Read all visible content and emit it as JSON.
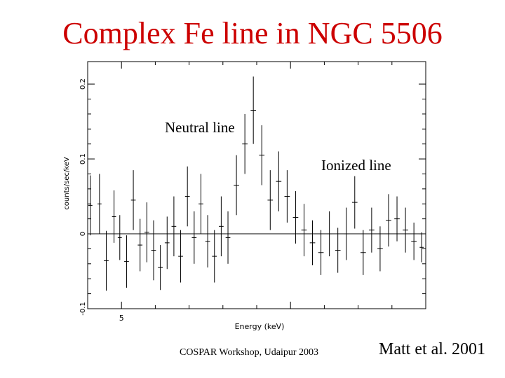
{
  "slide": {
    "title": "Complex Fe line in NGC 5506",
    "footer_left": "COSPAR Workshop, Udaipur 2003",
    "footer_right": "Matt et al. 2001",
    "title_color": "#cc0000"
  },
  "chart_data": {
    "type": "scatter",
    "xlabel": "Energy (keV)",
    "ylabel": "counts/sec/keV",
    "xlim": [
      4.0,
      14.0
    ],
    "ylim": [
      -0.1,
      0.23
    ],
    "xticks": [
      5
    ],
    "yticks": [
      -0.1,
      0,
      0.1,
      0.2
    ],
    "zero_line": true,
    "annotations": [
      {
        "text": "Neutral line"
      },
      {
        "text": "Ionized line"
      }
    ],
    "series": [
      {
        "errorbars": true,
        "points": [
          {
            "x": 4.08,
            "y": 0.038,
            "xerr": 0.06,
            "yerr": 0.04
          },
          {
            "x": 4.35,
            "y": 0.04,
            "xerr": 0.06,
            "yerr": 0.04
          },
          {
            "x": 4.55,
            "y": -0.036,
            "xerr": 0.07,
            "yerr": 0.04
          },
          {
            "x": 4.78,
            "y": 0.023,
            "xerr": 0.06,
            "yerr": 0.035
          },
          {
            "x": 4.95,
            "y": -0.005,
            "xerr": 0.06,
            "yerr": 0.03
          },
          {
            "x": 5.15,
            "y": -0.037,
            "xerr": 0.07,
            "yerr": 0.035
          },
          {
            "x": 5.35,
            "y": 0.045,
            "xerr": 0.07,
            "yerr": 0.04
          },
          {
            "x": 5.55,
            "y": -0.015,
            "xerr": 0.07,
            "yerr": 0.035
          },
          {
            "x": 5.75,
            "y": 0.002,
            "xerr": 0.07,
            "yerr": 0.04
          },
          {
            "x": 5.95,
            "y": -0.022,
            "xerr": 0.07,
            "yerr": 0.04
          },
          {
            "x": 6.15,
            "y": -0.045,
            "xerr": 0.07,
            "yerr": 0.03
          },
          {
            "x": 6.35,
            "y": -0.012,
            "xerr": 0.07,
            "yerr": 0.035
          },
          {
            "x": 6.55,
            "y": 0.01,
            "xerr": 0.07,
            "yerr": 0.04
          },
          {
            "x": 6.75,
            "y": -0.03,
            "xerr": 0.07,
            "yerr": 0.035
          },
          {
            "x": 6.95,
            "y": 0.05,
            "xerr": 0.07,
            "yerr": 0.04
          },
          {
            "x": 7.15,
            "y": -0.005,
            "xerr": 0.07,
            "yerr": 0.035
          },
          {
            "x": 7.35,
            "y": 0.04,
            "xerr": 0.07,
            "yerr": 0.04
          },
          {
            "x": 7.55,
            "y": -0.01,
            "xerr": 0.07,
            "yerr": 0.035
          },
          {
            "x": 7.75,
            "y": -0.03,
            "xerr": 0.07,
            "yerr": 0.035
          },
          {
            "x": 7.95,
            "y": 0.01,
            "xerr": 0.07,
            "yerr": 0.04
          },
          {
            "x": 8.15,
            "y": -0.005,
            "xerr": 0.07,
            "yerr": 0.035
          },
          {
            "x": 8.4,
            "y": 0.065,
            "xerr": 0.08,
            "yerr": 0.04
          },
          {
            "x": 8.65,
            "y": 0.12,
            "xerr": 0.08,
            "yerr": 0.04
          },
          {
            "x": 8.9,
            "y": 0.165,
            "xerr": 0.08,
            "yerr": 0.045
          },
          {
            "x": 9.15,
            "y": 0.105,
            "xerr": 0.08,
            "yerr": 0.04
          },
          {
            "x": 9.4,
            "y": 0.045,
            "xerr": 0.08,
            "yerr": 0.04
          },
          {
            "x": 9.65,
            "y": 0.07,
            "xerr": 0.08,
            "yerr": 0.04
          },
          {
            "x": 9.9,
            "y": 0.05,
            "xerr": 0.08,
            "yerr": 0.035
          },
          {
            "x": 10.15,
            "y": 0.022,
            "xerr": 0.08,
            "yerr": 0.035
          },
          {
            "x": 10.4,
            "y": 0.005,
            "xerr": 0.08,
            "yerr": 0.035
          },
          {
            "x": 10.65,
            "y": -0.012,
            "xerr": 0.08,
            "yerr": 0.03
          },
          {
            "x": 10.9,
            "y": -0.025,
            "xerr": 0.08,
            "yerr": 0.03
          },
          {
            "x": 11.15,
            "y": 0.0,
            "xerr": 0.08,
            "yerr": 0.03
          },
          {
            "x": 11.4,
            "y": -0.022,
            "xerr": 0.08,
            "yerr": 0.03
          },
          {
            "x": 11.65,
            "y": 0.0,
            "xerr": 0.08,
            "yerr": 0.035
          },
          {
            "x": 11.9,
            "y": 0.042,
            "xerr": 0.08,
            "yerr": 0.035
          },
          {
            "x": 12.15,
            "y": -0.025,
            "xerr": 0.08,
            "yerr": 0.03
          },
          {
            "x": 12.4,
            "y": 0.005,
            "xerr": 0.08,
            "yerr": 0.03
          },
          {
            "x": 12.65,
            "y": -0.02,
            "xerr": 0.08,
            "yerr": 0.03
          },
          {
            "x": 12.9,
            "y": 0.018,
            "xerr": 0.08,
            "yerr": 0.035
          },
          {
            "x": 13.15,
            "y": 0.02,
            "xerr": 0.08,
            "yerr": 0.03
          },
          {
            "x": 13.4,
            "y": 0.005,
            "xerr": 0.08,
            "yerr": 0.03
          },
          {
            "x": 13.65,
            "y": -0.01,
            "xerr": 0.08,
            "yerr": 0.025
          },
          {
            "x": 13.88,
            "y": -0.018,
            "xerr": 0.06,
            "yerr": 0.02
          }
        ]
      }
    ]
  }
}
